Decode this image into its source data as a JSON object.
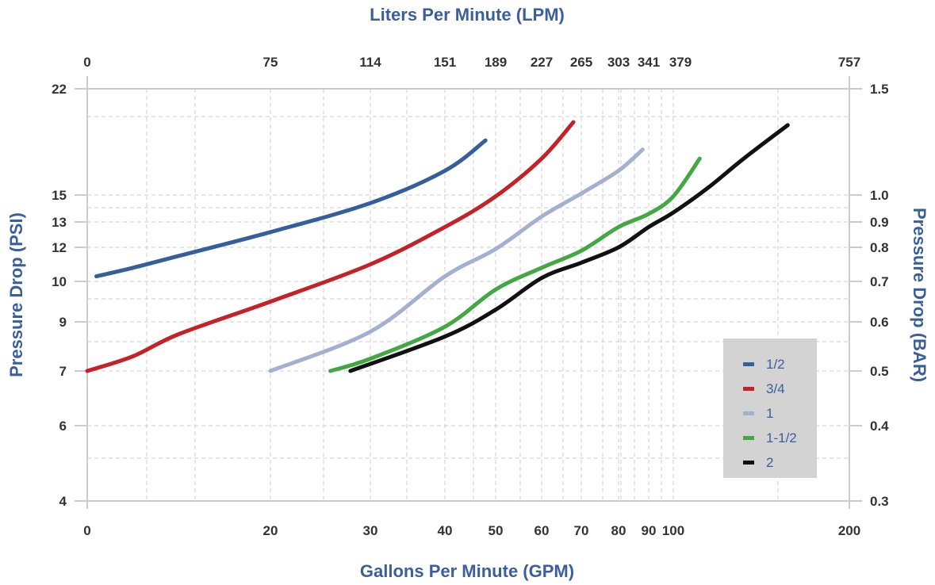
{
  "chart_data": {
    "type": "line",
    "title": "",
    "xlabel": "Gallons Per Minute (GPM)",
    "x2label": "Liters Per Minute (LPM)",
    "ylabel": "Pressure Drop (PSI)",
    "y2label": "Pressure Drop (BAR)",
    "x_ticks": [
      "0",
      "20",
      "30",
      "40",
      "50",
      "60",
      "70",
      "80",
      "90",
      "100",
      "200"
    ],
    "x2_ticks": [
      "0",
      "75",
      "114",
      "151",
      "189",
      "227",
      "265",
      "303",
      "341",
      "379",
      "757"
    ],
    "y_ticks": [
      "4",
      "6",
      "7",
      "9",
      "10",
      "12",
      "13",
      "15",
      "22"
    ],
    "y2_ticks": [
      "0.3",
      "0.4",
      "0.5",
      "0.6",
      "0.7",
      "0.8",
      "0.9",
      "1.0",
      "1.5"
    ],
    "grid": true,
    "legend_position": "bottom-right",
    "colors": {
      "axis_title": "#3a5f9a",
      "axis_line": "#cccccc",
      "grid": "#cccccc",
      "legend_bg": "#d3d3d3"
    },
    "series": [
      {
        "name": "1/2",
        "color": "#355f9c",
        "points": [
          [
            1,
            10.3
          ],
          [
            5,
            10.8
          ],
          [
            10,
            11.5
          ],
          [
            20,
            12.6
          ],
          [
            30,
            14.4
          ],
          [
            40,
            16.6
          ],
          [
            48,
            18.6
          ]
        ]
      },
      {
        "name": "3/4",
        "color": "#c52228",
        "points": [
          [
            0,
            7.0
          ],
          [
            5,
            7.6
          ],
          [
            10,
            8.5
          ],
          [
            20,
            9.5
          ],
          [
            30,
            11.0
          ],
          [
            40,
            12.8
          ],
          [
            50,
            14.9
          ],
          [
            60,
            17.4
          ],
          [
            68,
            19.8
          ]
        ]
      },
      {
        "name": "1",
        "color": "#a5b0d0",
        "points": [
          [
            20,
            7.0
          ],
          [
            30,
            8.6
          ],
          [
            40,
            10.3
          ],
          [
            50,
            11.9
          ],
          [
            60,
            13.4
          ],
          [
            70,
            15.1
          ],
          [
            80,
            16.6
          ],
          [
            88,
            18.0
          ]
        ]
      },
      {
        "name": "1-1/2",
        "color": "#43a842",
        "points": [
          [
            26,
            7.0
          ],
          [
            30,
            7.5
          ],
          [
            40,
            8.8
          ],
          [
            50,
            9.8
          ],
          [
            60,
            10.8
          ],
          [
            70,
            11.8
          ],
          [
            80,
            12.8
          ],
          [
            90,
            13.6
          ],
          [
            100,
            14.9
          ],
          [
            115,
            17.4
          ]
        ]
      },
      {
        "name": "2",
        "color": "#111111",
        "points": [
          [
            28,
            7.0
          ],
          [
            40,
            8.4
          ],
          [
            50,
            9.3
          ],
          [
            60,
            10.2
          ],
          [
            70,
            11.1
          ],
          [
            80,
            12.0
          ],
          [
            90,
            12.8
          ],
          [
            100,
            13.7
          ],
          [
            120,
            15.5
          ],
          [
            140,
            17.4
          ],
          [
            165,
            19.6
          ]
        ]
      }
    ]
  }
}
